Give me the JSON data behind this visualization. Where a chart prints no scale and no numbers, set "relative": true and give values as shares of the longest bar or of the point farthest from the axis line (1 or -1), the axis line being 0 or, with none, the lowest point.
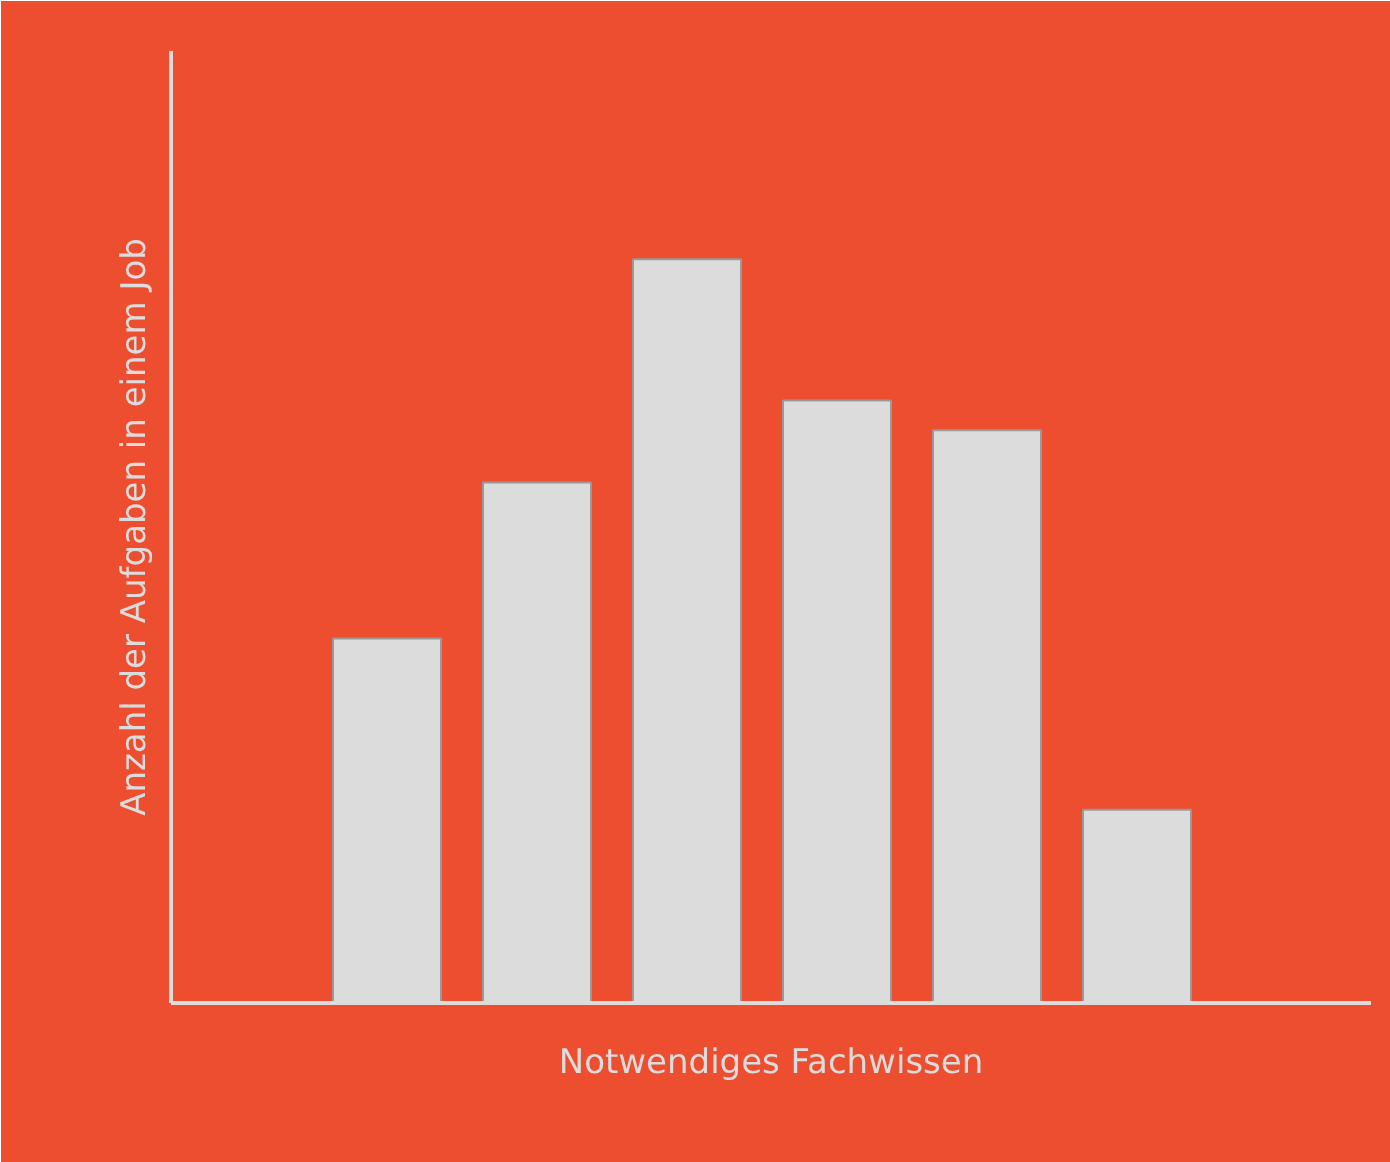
{
  "chart_data": {
    "type": "bar",
    "relative": true,
    "xlabel": "Notwendiges Fachwissen",
    "ylabel": "Anzahl der Aufgaben in einem Job",
    "categories": [
      null,
      null,
      null,
      null,
      null,
      null
    ],
    "values": [
      0.49,
      0.7,
      1,
      0.81,
      0.77,
      0.26
    ],
    "color": "#dcdcdc"
  }
}
